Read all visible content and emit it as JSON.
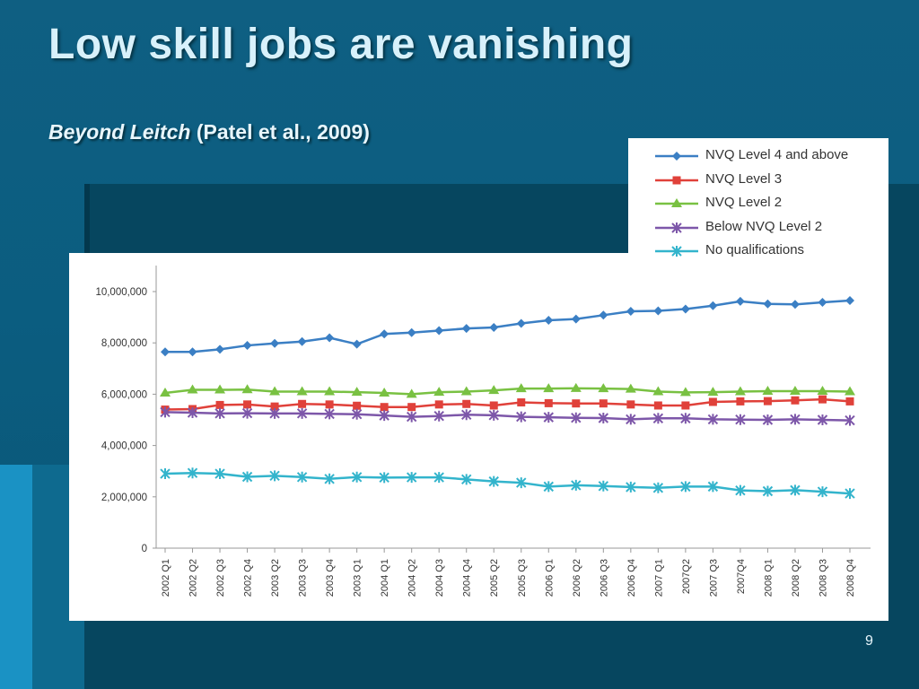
{
  "slide": {
    "title": "Low skill jobs are vanishing",
    "subtitle_italic": "Beyond Leitch",
    "subtitle_rest": "(Patel et al., 2009)",
    "page_number": "9"
  },
  "colors": {
    "NVQ Level 4 and above": "#3b7fc4",
    "NVQ Level 3": "#e0413a",
    "NVQ Level 2": "#79c142",
    "Below NVQ Level 2": "#7d57a9",
    "No qualifications": "#33b4cc"
  },
  "chart_data": {
    "type": "line",
    "title": "",
    "xlabel": "",
    "ylabel": "",
    "ylim": [
      0,
      10000000
    ],
    "yticks": [
      0,
      2000000,
      4000000,
      6000000,
      8000000,
      10000000
    ],
    "ytick_labels": [
      "0",
      "2,000,000",
      "4,000,000",
      "6,000,000",
      "8,000,000",
      "10,000,000"
    ],
    "grid": false,
    "legend_position": "top-right",
    "categories": [
      "2002 Q1",
      "2002 Q2",
      "2002 Q3",
      "2002 Q4",
      "2003 Q2",
      "2003 Q3",
      "2003 Q4",
      "2003 Q1",
      "2004 Q1",
      "2004 Q2",
      "2004 Q3",
      "2004 Q4",
      "2005 Q2",
      "2005 Q3",
      "2006 Q1",
      "2006 Q2",
      "2006 Q3",
      "2006 Q4",
      "2007 Q1",
      "2007Q2",
      "2007 Q3",
      "2007Q4",
      "2008 Q1",
      "2008 Q2",
      "2008 Q3",
      "2008 Q4"
    ],
    "series": [
      {
        "name": "NVQ Level 4 and above",
        "marker": "diamond",
        "values": [
          7650000,
          7650000,
          7750000,
          7900000,
          7980000,
          8050000,
          8200000,
          7950000,
          8350000,
          8400000,
          8480000,
          8560000,
          8600000,
          8760000,
          8880000,
          8930000,
          9080000,
          9230000,
          9250000,
          9320000,
          9450000,
          9620000,
          9520000,
          9500000,
          9580000,
          9650000
        ]
      },
      {
        "name": "NVQ Level 3",
        "marker": "square",
        "values": [
          5400000,
          5420000,
          5580000,
          5600000,
          5520000,
          5620000,
          5600000,
          5550000,
          5500000,
          5500000,
          5600000,
          5620000,
          5560000,
          5680000,
          5650000,
          5640000,
          5640000,
          5600000,
          5560000,
          5560000,
          5700000,
          5720000,
          5730000,
          5760000,
          5800000,
          5720000
        ]
      },
      {
        "name": "NVQ Level 2",
        "marker": "triangle",
        "values": [
          6050000,
          6170000,
          6170000,
          6180000,
          6100000,
          6100000,
          6100000,
          6080000,
          6050000,
          6000000,
          6080000,
          6100000,
          6150000,
          6220000,
          6220000,
          6230000,
          6220000,
          6200000,
          6100000,
          6070000,
          6080000,
          6100000,
          6120000,
          6120000,
          6120000,
          6100000
        ]
      },
      {
        "name": "Below NVQ Level 2",
        "marker": "star",
        "values": [
          5300000,
          5280000,
          5250000,
          5260000,
          5250000,
          5250000,
          5230000,
          5220000,
          5170000,
          5120000,
          5150000,
          5200000,
          5180000,
          5120000,
          5100000,
          5080000,
          5070000,
          5020000,
          5060000,
          5060000,
          5020000,
          5010000,
          5000000,
          5020000,
          5000000,
          4980000
        ]
      },
      {
        "name": "No qualifications",
        "marker": "star",
        "values": [
          2900000,
          2930000,
          2900000,
          2780000,
          2820000,
          2770000,
          2700000,
          2770000,
          2750000,
          2760000,
          2760000,
          2680000,
          2600000,
          2550000,
          2400000,
          2450000,
          2420000,
          2380000,
          2350000,
          2400000,
          2400000,
          2250000,
          2220000,
          2260000,
          2200000,
          2130000
        ]
      }
    ]
  }
}
